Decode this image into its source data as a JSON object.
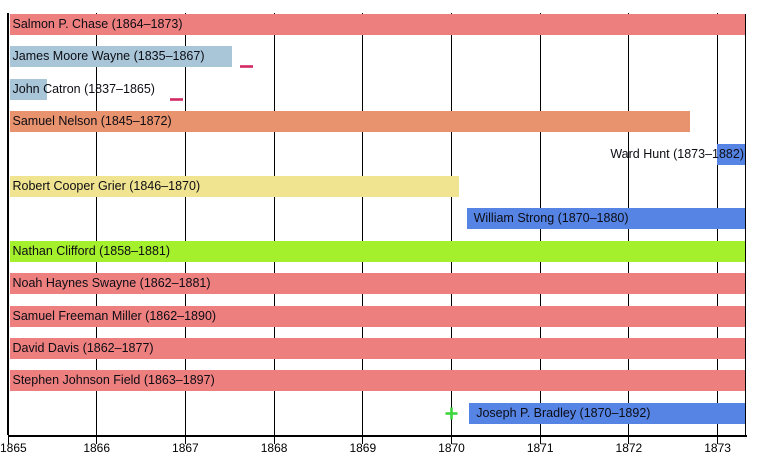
{
  "chart_data": {
    "type": "bar",
    "variant": "timeline-gantt",
    "title": "",
    "xlabel": "",
    "ylabel": "",
    "grid": true,
    "x_axis": {
      "ticks": [
        1865,
        1866,
        1867,
        1868,
        1869,
        1870,
        1871,
        1872,
        1873
      ],
      "domain": [
        1865.02,
        1873.31
      ]
    },
    "colors": {
      "coral": "#ee7f7f",
      "steel_blue_light": "#a9c6d8",
      "salmon_dark": "#e9926e",
      "blue": "#5584e4",
      "khaki": "#f0e490",
      "green_yellow": "#a5f02c",
      "marker_minus": "#d22a62",
      "marker_plus": "#3dd53d",
      "axis": "#000000",
      "label_text": "#0d0d14"
    },
    "rows": [
      {
        "name": "salmon-p-chase",
        "label": "Salmon P. Chase (1864–1873)",
        "start": 1864.92,
        "end": 1873.35,
        "color": "#ee7f7f",
        "label_align": "left"
      },
      {
        "name": "james-moore-wayne",
        "label": "James Moore Wayne (1835–1867)",
        "start": 1835,
        "end": 1867.53,
        "color": "#a9c6d8",
        "label_align": "left",
        "marker": {
          "glyph": "dash",
          "x": 1867.69,
          "color": "#d22a62"
        }
      },
      {
        "name": "john-catron",
        "label": "John Catron (1837–1865)",
        "start": 1837,
        "end": 1865.44,
        "color": "#a9c6d8",
        "label_align": "left",
        "marker": {
          "glyph": "dash",
          "x": 1866.9,
          "color": "#d22a62"
        }
      },
      {
        "name": "samuel-nelson",
        "label": "Samuel Nelson (1845–1872)",
        "start": 1845,
        "end": 1872.69,
        "color": "#e9926e",
        "label_align": "left"
      },
      {
        "name": "ward-hunt",
        "label": "Ward Hunt (1873–1882)",
        "start": 1872.99,
        "end": 1882,
        "color": "#5584e4",
        "label_align": "right"
      },
      {
        "name": "robert-cooper-grier",
        "label": "Robert Cooper Grier (1846–1870)",
        "start": 1846,
        "end": 1870.08,
        "color": "#f0e490",
        "label_align": "left"
      },
      {
        "name": "william-strong",
        "label": "William Strong (1870–1880)",
        "start": 1870.17,
        "end": 1880,
        "color": "#5584e4",
        "label_align": "left"
      },
      {
        "name": "nathan-clifford",
        "label": "Nathan Clifford (1858–1881)",
        "start": 1858,
        "end": 1881,
        "color": "#a5f02c",
        "label_align": "left"
      },
      {
        "name": "noah-haynes-swayne",
        "label": "Noah Haynes Swayne (1862–1881)",
        "start": 1862,
        "end": 1881,
        "color": "#ee7f7f",
        "label_align": "left"
      },
      {
        "name": "samuel-freeman-miller",
        "label": "Samuel Freeman Miller (1862–1890)",
        "start": 1862,
        "end": 1890,
        "color": "#ee7f7f",
        "label_align": "left"
      },
      {
        "name": "david-davis",
        "label": "David Davis (1862–1877)",
        "start": 1862,
        "end": 1877,
        "color": "#ee7f7f",
        "label_align": "left"
      },
      {
        "name": "stephen-johnson-field",
        "label": "Stephen Johnson Field (1863–1897)",
        "start": 1863,
        "end": 1897,
        "color": "#ee7f7f",
        "label_align": "left"
      },
      {
        "name": "joseph-p-bradley",
        "label": "Joseph P. Bradley (1870–1892)",
        "start": 1870.2,
        "end": 1892,
        "color": "#5584e4",
        "label_align": "left",
        "marker": {
          "glyph": "plus",
          "x": 1870.0,
          "color": "#3dd53d"
        }
      }
    ]
  }
}
